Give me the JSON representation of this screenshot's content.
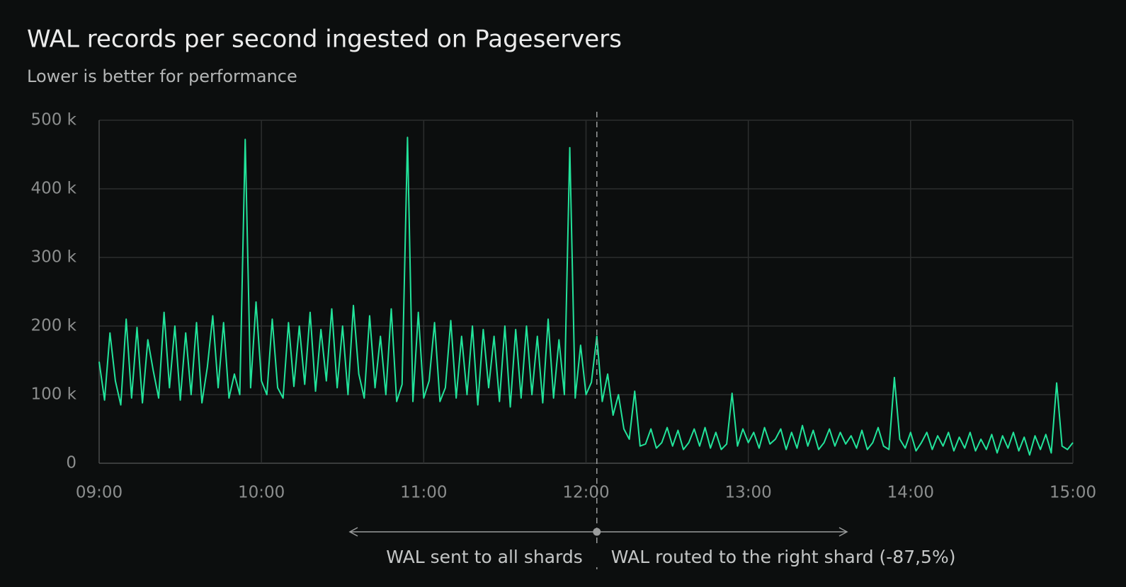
{
  "chart_data": {
    "type": "line",
    "title": "WAL records per second ingested on Pageservers",
    "subtitle": "Lower is better for performance",
    "color": "#22e39a",
    "grid": true,
    "ylim": [
      0,
      500
    ],
    "yticks": [
      0,
      {
        "value": 100,
        "label": "100 k"
      },
      {
        "value": 200,
        "label": "200 k"
      },
      {
        "value": 300,
        "label": "300 k"
      },
      {
        "value": 400,
        "label": "400 k"
      },
      {
        "value": 500,
        "label": "500 k"
      }
    ],
    "xlim": [
      "09:00",
      "15:00"
    ],
    "xticks": [
      "09:00",
      "10:00",
      "11:00",
      "12:00",
      "13:00",
      "14:00",
      "15:00"
    ],
    "x": [
      "09:00",
      "09:02",
      "09:04",
      "09:06",
      "09:08",
      "09:10",
      "09:12",
      "09:14",
      "09:16",
      "09:18",
      "09:20",
      "09:22",
      "09:24",
      "09:26",
      "09:28",
      "09:30",
      "09:32",
      "09:34",
      "09:36",
      "09:38",
      "09:40",
      "09:42",
      "09:44",
      "09:46",
      "09:48",
      "09:50",
      "09:52",
      "09:54",
      "09:56",
      "09:58",
      "10:00",
      "10:02",
      "10:04",
      "10:06",
      "10:08",
      "10:10",
      "10:12",
      "10:14",
      "10:16",
      "10:18",
      "10:20",
      "10:22",
      "10:24",
      "10:26",
      "10:28",
      "10:30",
      "10:32",
      "10:34",
      "10:36",
      "10:38",
      "10:40",
      "10:42",
      "10:44",
      "10:46",
      "10:48",
      "10:50",
      "10:52",
      "10:54",
      "10:56",
      "10:58",
      "11:00",
      "11:02",
      "11:04",
      "11:06",
      "11:08",
      "11:10",
      "11:12",
      "11:14",
      "11:16",
      "11:18",
      "11:20",
      "11:22",
      "11:24",
      "11:26",
      "11:28",
      "11:30",
      "11:32",
      "11:34",
      "11:36",
      "11:38",
      "11:40",
      "11:42",
      "11:44",
      "11:46",
      "11:48",
      "11:50",
      "11:52",
      "11:54",
      "11:56",
      "11:58",
      "12:00",
      "12:02",
      "12:04",
      "12:06",
      "12:08",
      "12:10",
      "12:12",
      "12:14",
      "12:16",
      "12:18",
      "12:20",
      "12:22",
      "12:24",
      "12:26",
      "12:28",
      "12:30",
      "12:32",
      "12:34",
      "12:36",
      "12:38",
      "12:40",
      "12:42",
      "12:44",
      "12:46",
      "12:48",
      "12:50",
      "12:52",
      "12:54",
      "12:56",
      "12:58",
      "13:00",
      "13:02",
      "13:04",
      "13:06",
      "13:08",
      "13:10",
      "13:12",
      "13:14",
      "13:16",
      "13:18",
      "13:20",
      "13:22",
      "13:24",
      "13:26",
      "13:28",
      "13:30",
      "13:32",
      "13:34",
      "13:36",
      "13:38",
      "13:40",
      "13:42",
      "13:44",
      "13:46",
      "13:48",
      "13:50",
      "13:52",
      "13:54",
      "13:56",
      "13:58",
      "14:00",
      "14:02",
      "14:04",
      "14:06",
      "14:08",
      "14:10",
      "14:12",
      "14:14",
      "14:16",
      "14:18",
      "14:20",
      "14:22",
      "14:24",
      "14:26",
      "14:28",
      "14:30",
      "14:32",
      "14:34",
      "14:36",
      "14:38",
      "14:40",
      "14:42",
      "14:44",
      "14:46",
      "14:48",
      "14:50",
      "14:52",
      "14:54",
      "14:56",
      "14:58",
      "15:00"
    ],
    "values": [
      148,
      92,
      190,
      120,
      85,
      210,
      95,
      198,
      88,
      180,
      135,
      95,
      220,
      110,
      200,
      92,
      190,
      100,
      205,
      88,
      140,
      215,
      110,
      205,
      95,
      130,
      100,
      472,
      110,
      235,
      120,
      100,
      210,
      110,
      95,
      205,
      112,
      200,
      115,
      220,
      105,
      195,
      120,
      225,
      110,
      200,
      100,
      230,
      130,
      95,
      215,
      110,
      185,
      100,
      225,
      90,
      115,
      475,
      90,
      220,
      95,
      120,
      205,
      90,
      110,
      208,
      95,
      185,
      100,
      200,
      85,
      195,
      110,
      185,
      90,
      200,
      82,
      195,
      95,
      200,
      100,
      185,
      88,
      210,
      95,
      180,
      100,
      460,
      95,
      172,
      100,
      118,
      185,
      90,
      130,
      70,
      100,
      50,
      35,
      105,
      25,
      28,
      50,
      22,
      30,
      52,
      25,
      48,
      20,
      30,
      50,
      25,
      52,
      22,
      45,
      20,
      28,
      102,
      25,
      50,
      30,
      45,
      22,
      52,
      28,
      35,
      50,
      20,
      45,
      22,
      55,
      25,
      48,
      20,
      30,
      50,
      25,
      45,
      28,
      40,
      22,
      48,
      20,
      30,
      52,
      25,
      20,
      125,
      35,
      22,
      45,
      18,
      30,
      45,
      20,
      40,
      25,
      45,
      18,
      38,
      22,
      45,
      18,
      35,
      20,
      42,
      15,
      40,
      22,
      45,
      18,
      38,
      12,
      40,
      20,
      42,
      15,
      117,
      25,
      20,
      30
    ],
    "annotation": {
      "x": "12:04",
      "left_text": "WAL sent to all shards",
      "right_text": "WAL routed to the right shard (-87,5%)"
    }
  }
}
